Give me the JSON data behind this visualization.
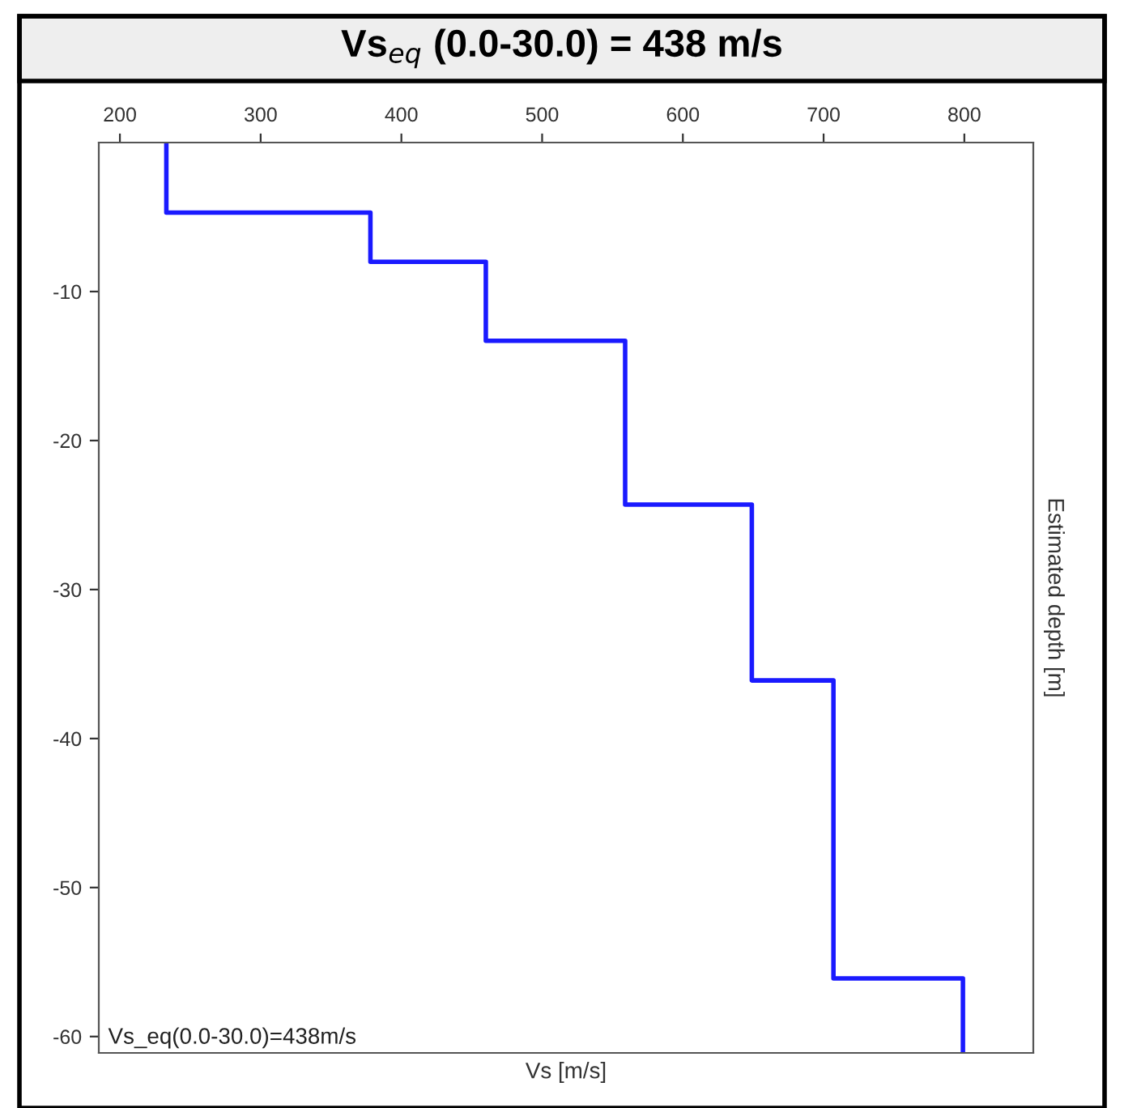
{
  "chart_data": {
    "type": "line",
    "title": "Vs$_{eq}$ (0.0-30.0) = 438 m/s",
    "xlabel": "Vs [m/s]",
    "ylabel": "Estimated depth [m]",
    "annotations": [
      "Vs_eq(0.0-30.0)=438m/s"
    ],
    "series": [
      {
        "color": "#1a1aff",
        "x": [
          233,
          233,
          378,
          378,
          460,
          460,
          559,
          559,
          649,
          649,
          707,
          707,
          799,
          799
        ],
        "values": [
          0,
          -4.7,
          -4.7,
          -8.0,
          -8.0,
          -13.3,
          -13.3,
          -24.3,
          -24.3,
          -36.1,
          -36.1,
          -56.1,
          -56.1,
          -61.1
        ]
      }
    ],
    "xlim": [
      185,
      849
    ],
    "xticks": [
      200,
      300,
      400,
      500,
      600,
      700,
      800
    ],
    "ylim": [
      -61.1,
      0
    ],
    "yticks": [
      -10,
      -20,
      -30,
      -40,
      -50,
      -60
    ],
    "grid": false,
    "legend": false,
    "marker": "none",
    "line_style": "solid"
  }
}
